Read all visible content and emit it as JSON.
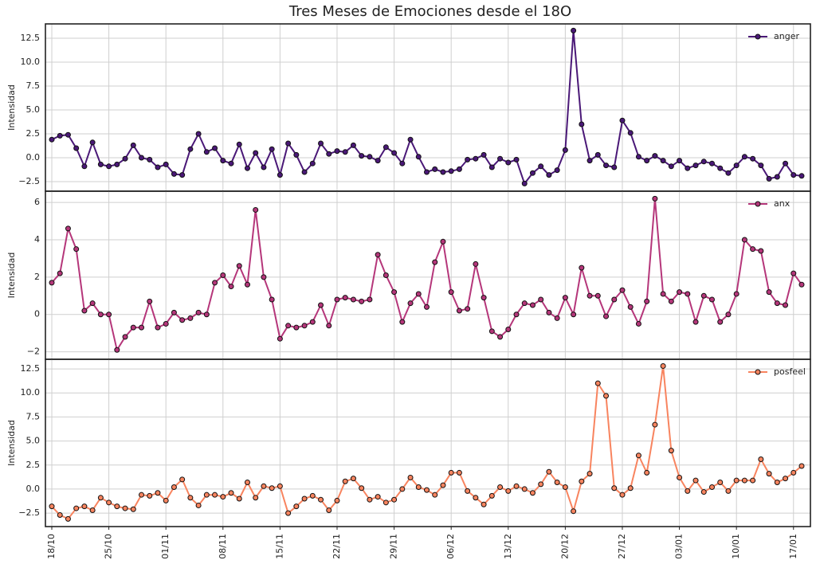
{
  "chart_data": {
    "type": "line",
    "title": "Tres Meses de Emociones desde el 18O",
    "categories": [
      "18/10",
      null,
      null,
      null,
      null,
      null,
      null,
      "25/10",
      null,
      null,
      null,
      null,
      null,
      null,
      "01/11",
      null,
      null,
      null,
      null,
      null,
      null,
      "08/11",
      null,
      null,
      null,
      null,
      null,
      null,
      "15/11",
      null,
      null,
      null,
      null,
      null,
      null,
      "22/11",
      null,
      null,
      null,
      null,
      null,
      null,
      "29/11",
      null,
      null,
      null,
      null,
      null,
      null,
      "06/12",
      null,
      null,
      null,
      null,
      null,
      null,
      "13/12",
      null,
      null,
      null,
      null,
      null,
      null,
      "20/12",
      null,
      null,
      null,
      null,
      null,
      null,
      "27/12",
      null,
      null,
      null,
      null,
      null,
      null,
      "03/01",
      null,
      null,
      null,
      null,
      null,
      null,
      "10/01",
      null,
      null,
      null,
      null,
      null,
      null,
      "17/01",
      null
    ],
    "grid": true,
    "panels": [
      {
        "ylabel": "Intensidad",
        "ylim": [
          -3.5,
          14.0
        ],
        "legend": "upper right",
        "yticks": [
          {
            "value": -2.5,
            "label": "−2.5"
          },
          {
            "value": 0,
            "label": "0.0"
          },
          2.5,
          {
            "value": 5,
            "label": "5.0"
          },
          7.5,
          {
            "value": 10,
            "label": "10.0"
          },
          12.5
        ],
        "series": [
          {
            "name": "anger",
            "color": "#4a1877",
            "values": [
              1.9,
              2.3,
              2.4,
              1.0,
              -0.9,
              1.6,
              -0.7,
              -0.9,
              -0.7,
              -0.1,
              1.3,
              0.0,
              -0.2,
              -1.0,
              -0.7,
              -1.7,
              -1.8,
              0.9,
              2.5,
              0.6,
              1.0,
              -0.3,
              -0.6,
              1.4,
              -1.1,
              0.5,
              -1.0,
              0.9,
              -1.8,
              1.5,
              0.3,
              -1.5,
              -0.6,
              1.5,
              0.4,
              0.7,
              0.6,
              1.3,
              0.2,
              0.1,
              -0.3,
              1.1,
              0.5,
              -0.6,
              1.9,
              0.1,
              -1.5,
              -1.2,
              -1.5,
              -1.4,
              -1.2,
              -0.2,
              -0.1,
              0.3,
              -1.0,
              -0.1,
              -0.5,
              -0.2,
              -2.7,
              -1.6,
              -0.9,
              -1.8,
              -1.3,
              0.8,
              13.3,
              3.5,
              -0.3,
              0.3,
              -0.8,
              -1.0,
              3.9,
              2.6,
              0.1,
              -0.3,
              0.2,
              -0.3,
              -0.9,
              -0.3,
              -1.1,
              -0.8,
              -0.4,
              -0.6,
              -1.1,
              -1.6,
              -0.8,
              0.1,
              -0.1,
              -0.8,
              -2.2,
              -2.0,
              -0.6,
              -1.8,
              -1.9
            ]
          }
        ]
      },
      {
        "ylabel": "Intensidad",
        "ylim": [
          -2.4,
          6.6
        ],
        "legend": "upper right",
        "yticks": [
          {
            "value": -2,
            "label": "−2"
          },
          0,
          2,
          4,
          6
        ],
        "series": [
          {
            "name": "anx",
            "color": "#b5367a",
            "values": [
              1.7,
              2.2,
              4.6,
              3.5,
              0.2,
              0.6,
              0.0,
              0.0,
              -1.9,
              -1.2,
              -0.7,
              -0.7,
              0.7,
              -0.7,
              -0.5,
              0.1,
              -0.3,
              -0.2,
              0.1,
              0.0,
              1.7,
              2.1,
              1.5,
              2.6,
              1.6,
              5.6,
              2.0,
              0.8,
              -1.3,
              -0.6,
              -0.7,
              -0.6,
              -0.4,
              0.5,
              -0.6,
              0.8,
              0.9,
              0.8,
              0.7,
              0.8,
              3.2,
              2.1,
              1.2,
              -0.4,
              0.6,
              1.1,
              0.4,
              2.8,
              3.9,
              1.2,
              0.2,
              0.3,
              2.7,
              0.9,
              -0.9,
              -1.2,
              -0.8,
              0.0,
              0.6,
              0.5,
              0.8,
              0.1,
              -0.2,
              0.9,
              0.0,
              2.5,
              1.0,
              1.0,
              -0.1,
              0.8,
              1.3,
              0.4,
              -0.5,
              0.7,
              6.2,
              1.1,
              0.7,
              1.2,
              1.1,
              -0.4,
              1.0,
              0.8,
              -0.4,
              0.0,
              1.1,
              4.0,
              3.5,
              3.4,
              1.2,
              0.6,
              0.5,
              2.2,
              1.6
            ]
          }
        ]
      },
      {
        "ylabel": "Intensidad",
        "ylim": [
          -3.9,
          13.5
        ],
        "legend": "upper right",
        "yticks": [
          {
            "value": -2.5,
            "label": "−2.5"
          },
          {
            "value": 0,
            "label": "0.0"
          },
          2.5,
          {
            "value": 5,
            "label": "5.0"
          },
          7.5,
          {
            "value": 10,
            "label": "10.0"
          },
          12.5
        ],
        "series": [
          {
            "name": "posfeel",
            "color": "#f8845f",
            "values": [
              -1.8,
              -2.7,
              -3.1,
              -2.0,
              -1.8,
              -2.2,
              -0.9,
              -1.4,
              -1.8,
              -2.0,
              -2.1,
              -0.6,
              -0.7,
              -0.4,
              -1.2,
              0.2,
              1.0,
              -0.9,
              -1.7,
              -0.6,
              -0.6,
              -0.8,
              -0.4,
              -1.0,
              0.7,
              -0.9,
              0.3,
              0.1,
              0.3,
              -2.5,
              -1.8,
              -1.0,
              -0.7,
              -1.1,
              -2.2,
              -1.2,
              0.8,
              1.1,
              0.1,
              -1.1,
              -0.8,
              -1.4,
              -1.1,
              0.0,
              1.2,
              0.2,
              -0.1,
              -0.6,
              0.4,
              1.7,
              1.7,
              -0.2,
              -0.9,
              -1.6,
              -0.7,
              0.2,
              -0.2,
              0.3,
              0.0,
              -0.4,
              0.5,
              1.8,
              0.7,
              0.2,
              -2.3,
              0.8,
              1.6,
              11.0,
              9.7,
              0.1,
              -0.6,
              0.1,
              3.5,
              1.7,
              6.7,
              12.8,
              4.0,
              1.2,
              -0.2,
              0.9,
              -0.3,
              0.2,
              0.7,
              -0.2,
              0.9,
              0.9,
              0.9,
              3.1,
              1.6,
              0.7,
              1.1,
              1.7,
              2.4
            ]
          }
        ]
      }
    ]
  }
}
